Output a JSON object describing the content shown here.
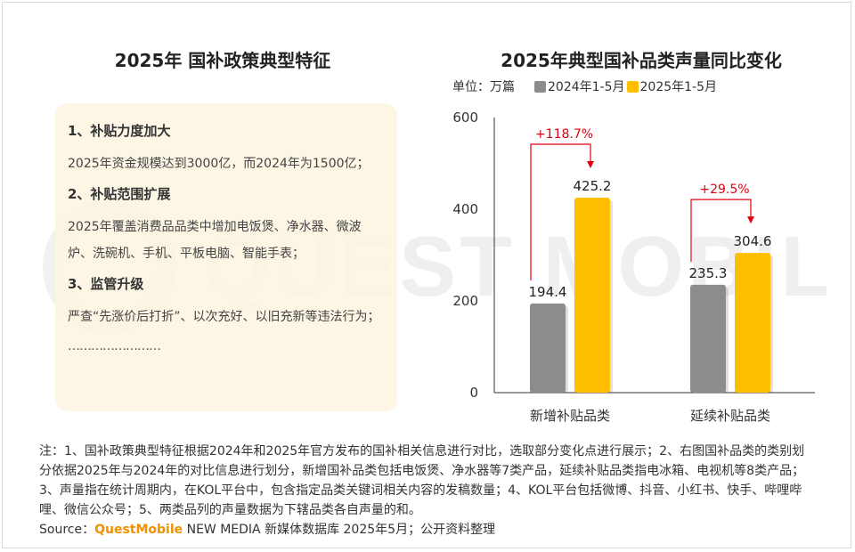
{
  "watermark": "QUEST MOBILE",
  "left": {
    "title": "2025年 国补政策典型特征",
    "sections": [
      {
        "heading": "1、补贴力度加大",
        "body": "2025年资金规模达到3000亿，而2024年为1500亿；"
      },
      {
        "heading": "2、补贴范围扩展",
        "body": "2025年覆盖消费品品类中增加电饭煲、净水器、微波炉、洗碗机、手机、平板电脑、智能手表；"
      },
      {
        "heading": "3、监管升级",
        "body": "严查“先涨价后打折”、以次充好、以旧充新等违法行为；"
      }
    ],
    "ellipsis": "……………………"
  },
  "chart_data": {
    "type": "bar",
    "title": "2025年典型国补品类声量同比变化",
    "unit_label": "单位：万篇",
    "categories": [
      "新增补贴品类",
      "延续补贴品类"
    ],
    "series": [
      {
        "name": "2024年1-5月",
        "values": [
          194.4,
          235.3
        ],
        "color": "#8c8c8c"
      },
      {
        "name": "2025年1-5月",
        "values": [
          425.2,
          304.6
        ],
        "color": "#ffbf00"
      }
    ],
    "value_labels": [
      [
        "194.4",
        "235.3"
      ],
      [
        "425.2",
        "304.6"
      ]
    ],
    "changes": [
      "+118.7%",
      "+29.5%"
    ],
    "change_color": "#e0000f",
    "y_ticks": [
      "0",
      "200",
      "400",
      "600"
    ],
    "ylim": [
      0,
      600
    ],
    "grid": false,
    "legend_position": "top-left"
  },
  "notes": "注：1、国补政策典型特征根据2024年和2025年官方发布的国补相关信息进行对比，选取部分变化点进行展示；2、右图国补品类的类别划分依据2025年与2024年的对比信息进行划分，新增国补品类包括电饭煲、净水器等7类产品，延续补贴品类指电冰箱、电视机等8类产品；3、声量指在统计周期内，在KOL平台中，包含指定品类关键词相关内容的发稿数量；4、KOL平台包括微博、抖音、小红书、快手、哔哩哔哩、微信公众号；5、两类品列的声量数据为下辖品类各自声量的和。",
  "source": {
    "prefix": "Source：",
    "brand": "QuestMobile",
    "suffix": " NEW MEDIA 新媒体数据库 2025年5月；公开资料整理"
  }
}
